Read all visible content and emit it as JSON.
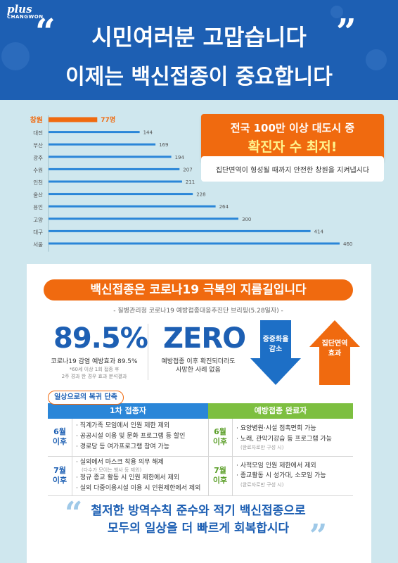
{
  "logo": {
    "plus": "plus",
    "city": "CHANGWON"
  },
  "header": {
    "quote_open": "“",
    "quote_close": "”",
    "title": "시민여러분 고맙습니다",
    "subtitle": "이제는 백신접종이 중요합니다"
  },
  "chart_data": {
    "type": "bar",
    "orientation": "horizontal",
    "categories": [
      "창원",
      "대전",
      "부산",
      "광주",
      "수원",
      "인천",
      "울산",
      "용인",
      "고양",
      "대구",
      "서울"
    ],
    "values": [
      77,
      144,
      169,
      194,
      207,
      211,
      228,
      264,
      300,
      414,
      460
    ],
    "value_labels": [
      "77명",
      "144",
      "169",
      "194",
      "207",
      "211",
      "228",
      "264",
      "300",
      "414",
      "460"
    ],
    "x_ticks": [
      "0",
      "50",
      "100",
      "150",
      "200",
      "250",
      "300",
      "350",
      "400",
      "450",
      "500"
    ],
    "xlim": [
      0,
      500
    ],
    "note": "'21. 5.31. 기준, 인구 10만명 당 확진자 수",
    "colors": {
      "highlight": "#f06a0f",
      "bars": "#2a86d8"
    }
  },
  "callout": {
    "line1": "전국 100만 이상 대도시 중",
    "line2": "확진자 수 최저!",
    "line3": "집단면역이 형성될 때까지 안전한 창원을 지켜냅시다"
  },
  "vaccine": {
    "banner": "백신접종은 코로나19 극복의 지름길입니다",
    "source": "- 질병관리청 코로나19 예방접종대응추진단 브리핑(5.28일자) -",
    "stat1": {
      "value": "89.5%",
      "desc": "코로나19 감염 예방효과 89.5%",
      "note1": "*60세 이상 1회 접종 후",
      "note2": "2주 경과 한 경우 효과 분석결과"
    },
    "stat2": {
      "value": "ZERO",
      "desc1": "예방접종 이후 확진되더라도",
      "desc2": "사망한 사례 없음"
    },
    "arrow_down": {
      "line1": "중증화율",
      "line2": "감소"
    },
    "arrow_up": {
      "line1": "집단면역",
      "line2": "효과"
    }
  },
  "table": {
    "label": "일상으로의 복귀 단축",
    "col1": "1차 접종자",
    "col2": "예방접종 완료자",
    "r1": {
      "when_month": "6월",
      "when_after": "이후",
      "left": [
        "· 직계가족 모임에서 인원 제한 제외",
        "· 공공시설 이용 및 문화 프로그램 등 할인",
        "· 경로당 등 여가프로그램 참여 가능"
      ],
      "right": [
        "· 요양병원·시설 접촉면회 가능",
        "· 노래, 관악기강습 등 프로그램 가능"
      ],
      "right_note": "(완료자로만 구성 시)"
    },
    "r2": {
      "when_month": "7월",
      "when_after": "이후",
      "left1": "· 실외에서 마스크 착용 의무 해제",
      "left1_note": "(다수가 모이는 행사 등 제외)",
      "left2": "· 정규 종교 활동 시 인원 제한에서 제외",
      "left3": "· 실외 다중이용시설 이용 시 인원제한에서 제외",
      "right": [
        "· 사적모임 인원 제한에서 제외",
        "· 종교활동 시 성가대, 소모임 가능"
      ],
      "right_note": "(완료자로만 구성 시)"
    }
  },
  "footer": {
    "line1": "철저한 방역수칙 준수와 적기 백신접종으로",
    "line2": "모두의 일상을 더 빠르게 회복합시다",
    "quote_open": "“",
    "quote_close": "”"
  }
}
